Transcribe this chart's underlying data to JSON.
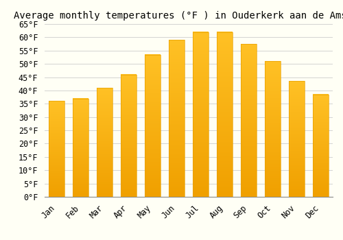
{
  "title": "Average monthly temperatures (°F ) in Ouderkerk aan de Amstel",
  "months": [
    "Jan",
    "Feb",
    "Mar",
    "Apr",
    "May",
    "Jun",
    "Jul",
    "Aug",
    "Sep",
    "Oct",
    "Nov",
    "Dec"
  ],
  "values": [
    36,
    37,
    41,
    46,
    53.5,
    59,
    62,
    62,
    57.5,
    51,
    43.5,
    38.5
  ],
  "bar_color_top": "#FFC125",
  "bar_color_bottom": "#F0A000",
  "bar_edge_color": "#E8A000",
  "background_color": "#FFFFF5",
  "grid_color": "#CCCCCC",
  "ylim": [
    0,
    65
  ],
  "yticks": [
    0,
    5,
    10,
    15,
    20,
    25,
    30,
    35,
    40,
    45,
    50,
    55,
    60,
    65
  ],
  "ylabel_suffix": "°F",
  "title_fontsize": 10,
  "tick_fontsize": 8.5,
  "font_family": "monospace",
  "bar_width": 0.65
}
